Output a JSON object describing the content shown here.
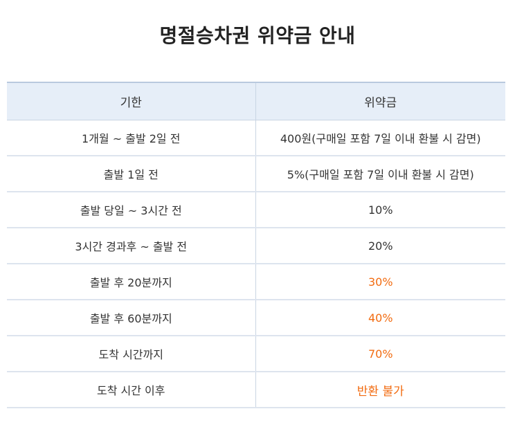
{
  "title": "명절승차권 위약금 안내",
  "accent_color": "#f26b10",
  "header_bg": "#e6eef8",
  "table": {
    "headers": [
      "기한",
      "위약금"
    ],
    "rows": [
      {
        "period": "1개월 ~ 출발 2일 전",
        "fee": "400원(구매일 포함 7일 이내 환불 시 감면)",
        "highlight": false
      },
      {
        "period": "출발 1일 전",
        "fee": "5%(구매일 포함 7일 이내 환불 시 감면)",
        "highlight": false
      },
      {
        "period": "출발 당일 ~ 3시간 전",
        "fee": "10%",
        "highlight": false
      },
      {
        "period": "3시간 경과후 ~ 출발 전",
        "fee": "20%",
        "highlight": false
      },
      {
        "period": "출발 후 20분까지",
        "fee": "30%",
        "highlight": true
      },
      {
        "period": "출발 후 60분까지",
        "fee": "40%",
        "highlight": true
      },
      {
        "period": "도착 시간까지",
        "fee": "70%",
        "highlight": true
      },
      {
        "period": "도착 시간 이후",
        "fee": "반환 불가",
        "highlight": true
      }
    ]
  }
}
